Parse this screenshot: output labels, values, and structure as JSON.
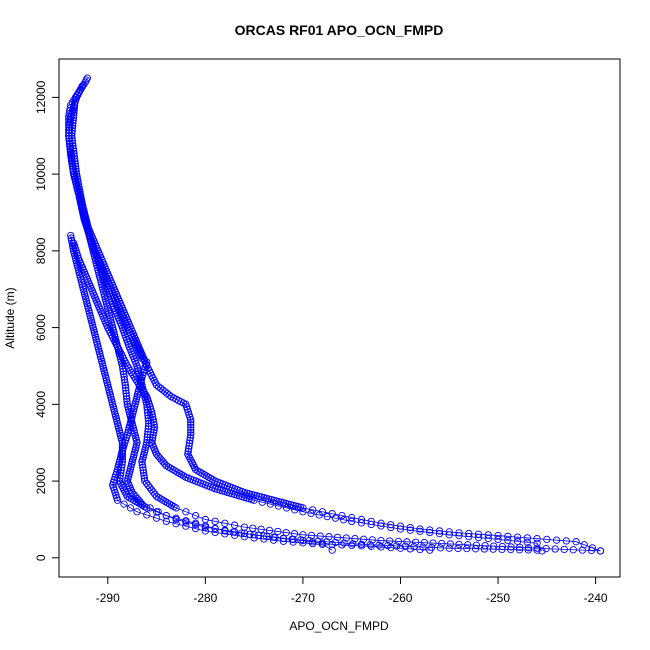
{
  "chart_data": {
    "type": "scatter",
    "title": "ORCAS RF01 APO_OCN_FMPD",
    "xlabel": "APO_OCN_FMPD",
    "ylabel": "Altitude (m)",
    "xlim": [
      -295,
      -237.5
    ],
    "ylim": [
      -500,
      13000
    ],
    "xticks": [
      -290,
      -280,
      -270,
      -260,
      -250,
      -240
    ],
    "yticks": [
      0,
      2000,
      4000,
      6000,
      8000,
      10000,
      12000
    ],
    "grid": false,
    "marker": "open circle",
    "color": "#0000ff",
    "series": [
      {
        "points": [
          [
            -292.1,
            12500
          ],
          [
            -292.3,
            12400
          ],
          [
            -292.8,
            12200
          ],
          [
            -293.3,
            12000
          ],
          [
            -293.8,
            11800
          ],
          [
            -294.0,
            11500
          ],
          [
            -294.0,
            11000
          ],
          [
            -293.8,
            10500
          ],
          [
            -293.5,
            10000
          ],
          [
            -293.0,
            9500
          ],
          [
            -292.5,
            9000
          ],
          [
            -292.0,
            8500
          ],
          [
            -291.5,
            8000
          ],
          [
            -291.0,
            7500
          ],
          [
            -290.5,
            7000
          ],
          [
            -290.0,
            6500
          ],
          [
            -289.5,
            6000
          ],
          [
            -289.0,
            5500
          ],
          [
            -288.5,
            5000
          ],
          [
            -288.2,
            4500
          ],
          [
            -288.0,
            4000
          ],
          [
            -287.5,
            3500
          ],
          [
            -287.0,
            3000
          ],
          [
            -287.5,
            2500
          ],
          [
            -288.0,
            2000
          ],
          [
            -287.5,
            1700
          ],
          [
            -286.5,
            1400
          ],
          [
            -284.0,
            1100
          ],
          [
            -281.0,
            900
          ],
          [
            -278.0,
            700
          ],
          [
            -272.0,
            500
          ],
          [
            -264.0,
            350
          ],
          [
            -255.0,
            250
          ],
          [
            -246.0,
            200
          ]
        ]
      },
      {
        "points": [
          [
            -292.6,
            12300
          ],
          [
            -293.2,
            12000
          ],
          [
            -293.8,
            11500
          ],
          [
            -294.0,
            11000
          ],
          [
            -293.6,
            10200
          ],
          [
            -293.0,
            9500
          ],
          [
            -292.4,
            8800
          ],
          [
            -291.6,
            8200
          ],
          [
            -290.8,
            7600
          ],
          [
            -290.0,
            7000
          ],
          [
            -289.3,
            6500
          ],
          [
            -288.5,
            6000
          ],
          [
            -287.8,
            5500
          ],
          [
            -287.0,
            5000
          ],
          [
            -286.5,
            4500
          ],
          [
            -286.0,
            4000
          ],
          [
            -285.8,
            3500
          ],
          [
            -286.0,
            3000
          ],
          [
            -286.5,
            2500
          ],
          [
            -286.2,
            2000
          ],
          [
            -285.0,
            1600
          ],
          [
            -283.0,
            1300
          ],
          [
            -280.0,
            1000
          ],
          [
            -276.0,
            800
          ],
          [
            -270.0,
            600
          ],
          [
            -262.0,
            450
          ],
          [
            -254.0,
            350
          ],
          [
            -246.0,
            250
          ],
          [
            -239.5,
            180
          ]
        ]
      },
      {
        "points": [
          [
            -293.4,
            11800
          ],
          [
            -293.7,
            11000
          ],
          [
            -293.2,
            10000
          ],
          [
            -292.6,
            9200
          ],
          [
            -292.0,
            8600
          ],
          [
            -291.0,
            8000
          ],
          [
            -290.0,
            7400
          ],
          [
            -289.0,
            6800
          ],
          [
            -288.0,
            6200
          ],
          [
            -287.0,
            5600
          ],
          [
            -286.0,
            5000
          ],
          [
            -285.0,
            4500
          ],
          [
            -283.5,
            4200
          ],
          [
            -282.0,
            4000
          ],
          [
            -281.5,
            3600
          ],
          [
            -281.5,
            3200
          ],
          [
            -281.8,
            2700
          ],
          [
            -281.0,
            2300
          ],
          [
            -279.0,
            2000
          ],
          [
            -276.0,
            1700
          ],
          [
            -273.0,
            1500
          ],
          [
            -270.0,
            1300
          ],
          [
            -266.0,
            1100
          ],
          [
            -262.0,
            900
          ],
          [
            -258.0,
            750
          ],
          [
            -254.0,
            650
          ],
          [
            -250.0,
            580
          ],
          [
            -246.0,
            500
          ],
          [
            -242.0,
            420
          ],
          [
            -239.5,
            180
          ]
        ]
      },
      {
        "points": [
          [
            -293.8,
            8400
          ],
          [
            -293.5,
            8000
          ],
          [
            -293.0,
            7500
          ],
          [
            -292.5,
            7000
          ],
          [
            -292.0,
            6500
          ],
          [
            -291.5,
            6000
          ],
          [
            -291.0,
            5500
          ],
          [
            -290.5,
            5000
          ],
          [
            -290.0,
            4500
          ],
          [
            -289.5,
            4000
          ],
          [
            -289.0,
            3500
          ],
          [
            -288.5,
            3000
          ],
          [
            -288.5,
            2500
          ],
          [
            -288.8,
            2000
          ],
          [
            -288.0,
            1600
          ],
          [
            -286.0,
            1300
          ],
          [
            -283.0,
            1000
          ],
          [
            -280.0,
            800
          ],
          [
            -275.0,
            600
          ],
          [
            -270.0,
            450
          ],
          [
            -267.0,
            350
          ],
          [
            -263.0,
            300
          ],
          [
            -260.0,
            250
          ],
          [
            -257.0,
            200
          ]
        ]
      },
      {
        "points": [
          [
            -293.5,
            8200
          ],
          [
            -293.0,
            7800
          ],
          [
            -292.0,
            7200
          ],
          [
            -291.0,
            6600
          ],
          [
            -290.0,
            6000
          ],
          [
            -289.0,
            5500
          ],
          [
            -288.0,
            5000
          ],
          [
            -287.0,
            4600
          ],
          [
            -286.0,
            4200
          ],
          [
            -285.5,
            3800
          ],
          [
            -285.2,
            3400
          ],
          [
            -285.5,
            3000
          ],
          [
            -285.0,
            2700
          ],
          [
            -284.0,
            2400
          ],
          [
            -282.0,
            2100
          ],
          [
            -279.0,
            1800
          ],
          [
            -275.0,
            1500
          ],
          [
            -270.0,
            1200
          ],
          [
            -265.0,
            950
          ],
          [
            -260.0,
            750
          ],
          [
            -255.0,
            600
          ],
          [
            -250.0,
            480
          ],
          [
            -246.0,
            380
          ],
          [
            -245.5,
            180
          ]
        ]
      },
      {
        "points": [
          [
            -291.0,
            7800
          ],
          [
            -290.0,
            7200
          ],
          [
            -289.0,
            6600
          ],
          [
            -288.0,
            6000
          ],
          [
            -287.0,
            5500
          ],
          [
            -286.5,
            5200
          ],
          [
            -286.0,
            5100
          ],
          [
            -286.5,
            4700
          ],
          [
            -287.0,
            4200
          ],
          [
            -287.5,
            3700
          ],
          [
            -288.0,
            3200
          ],
          [
            -288.5,
            2800
          ],
          [
            -289.0,
            2300
          ],
          [
            -289.5,
            1900
          ],
          [
            -289.0,
            1500
          ],
          [
            -287.0,
            1200
          ],
          [
            -284.0,
            950
          ],
          [
            -280.0,
            700
          ],
          [
            -276.0,
            550
          ],
          [
            -272.0,
            430
          ],
          [
            -268.0,
            350
          ],
          [
            -267.0,
            200
          ]
        ]
      }
    ]
  }
}
